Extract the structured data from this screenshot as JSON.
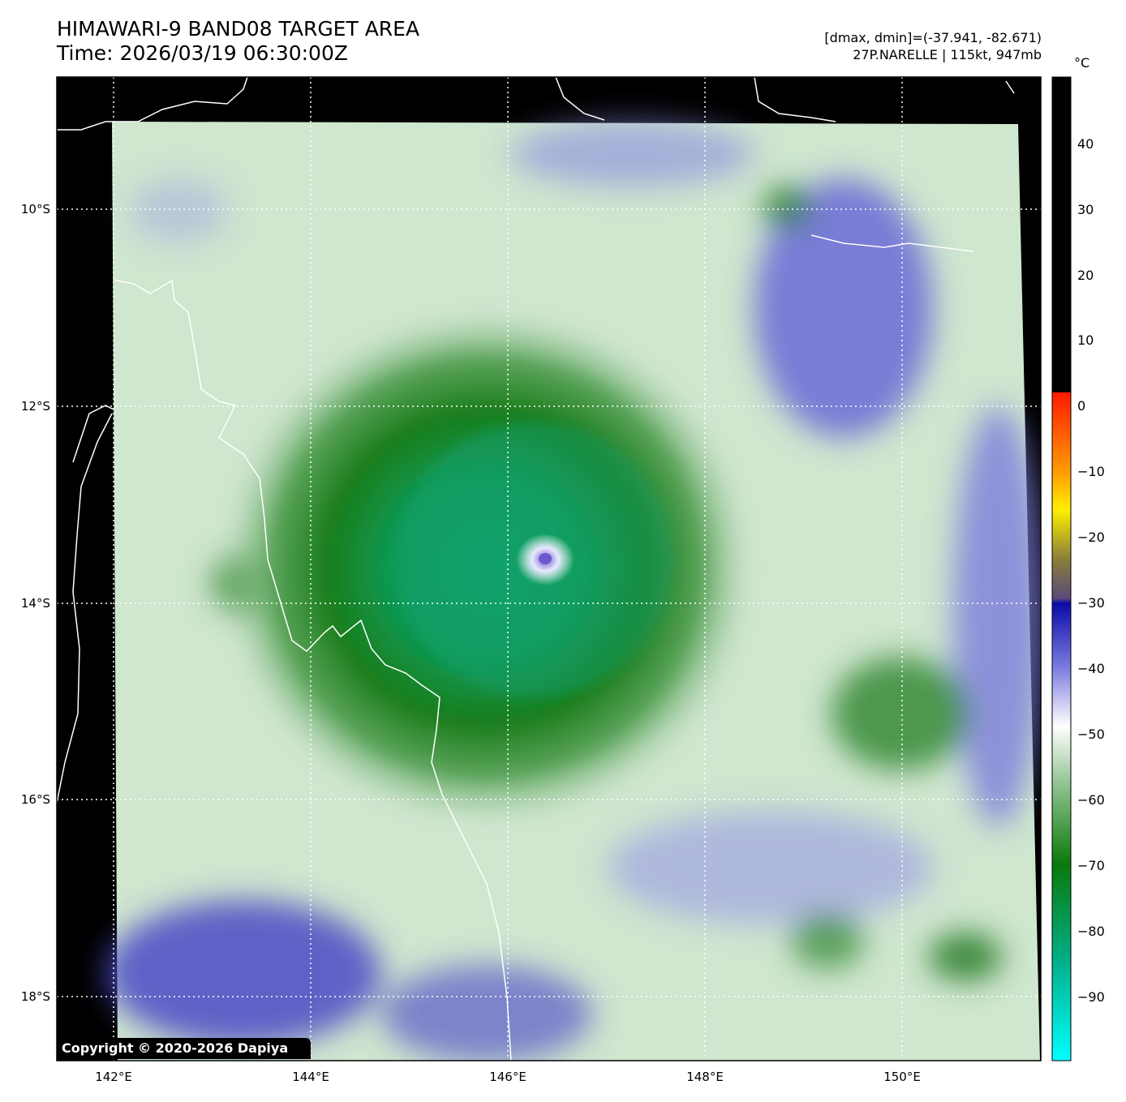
{
  "header": {
    "title": "HIMAWARI-9 BAND08 TARGET AREA",
    "time": "Time: 2026/03/19 06:30:00Z",
    "range": "[dmax, dmin]=(-37.941, -82.671)",
    "storm": "27P.NARELLE | 115kt, 947mb"
  },
  "axes": {
    "lon_labels": [
      "142°E",
      "144°E",
      "146°E",
      "148°E",
      "150°E"
    ],
    "lat_labels": [
      "10°S",
      "12°S",
      "14°S",
      "16°S",
      "18°S"
    ]
  },
  "colorbar": {
    "unit": "°C",
    "ticks": [
      "40",
      "30",
      "20",
      "10",
      "0",
      "−10",
      "−20",
      "−30",
      "−40",
      "−50",
      "−60",
      "−70",
      "−80",
      "−90"
    ],
    "colors": {
      "warm": "#000000",
      "red": "#ff1a00",
      "orange": "#ff9900",
      "yellow": "#ffee00",
      "olive": "#8a7f3a",
      "navy": "#0a0aa8",
      "periwinkle": "#7b7be0",
      "white": "#ffffff",
      "green": "#0a7a0a",
      "teal": "#00c3a0",
      "cyan": "#00ffff"
    }
  },
  "storm_center": {
    "lon": 146.4,
    "lat": -13.6
  },
  "copyright": "Copyright © 2020-2026 Dapiya"
}
